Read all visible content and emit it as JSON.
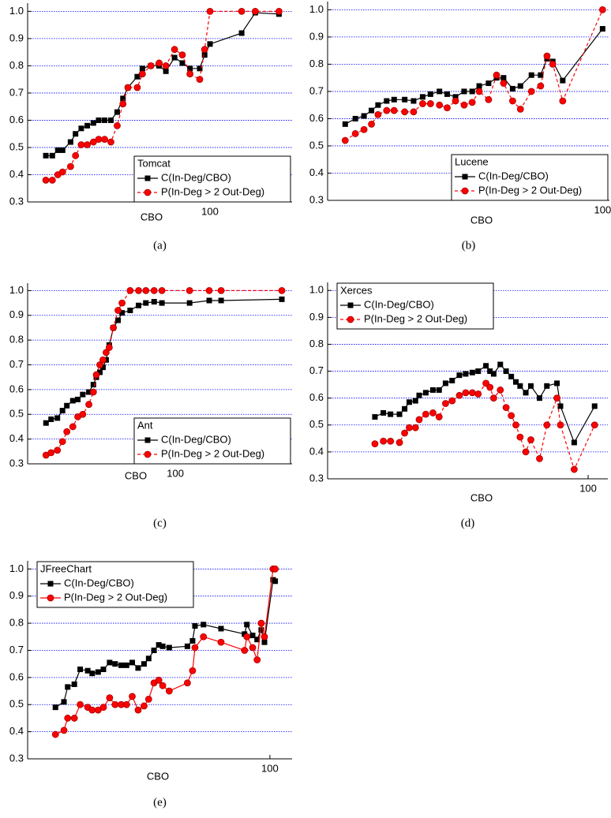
{
  "chart_data": [
    {
      "type": "line",
      "title": "Tomcat",
      "x_label": "CBO",
      "caption": "(a)",
      "x_log": true,
      "xlim": [
        0.6,
        1000
      ],
      "xticks": [
        100
      ],
      "ylim": [
        0.3,
        1.03
      ],
      "yticks": [
        0.3,
        0.4,
        0.5,
        0.6,
        0.7,
        0.8,
        0.9,
        {
          "value": 1,
          "label": "1.0"
        }
      ],
      "grid": true,
      "grid_color": "#0000ff",
      "legend_position": "lower right",
      "x": [
        1,
        1.2,
        1.4,
        1.6,
        2,
        2.3,
        2.7,
        3.2,
        3.8,
        4.4,
        5.2,
        6.2,
        7.4,
        8.7,
        10,
        13,
        15,
        19,
        24,
        29,
        37,
        46,
        57,
        75,
        86,
        100,
        243,
        356,
        693
      ],
      "series": [
        {
          "name": "C(In-Deg/CBO)",
          "color": "#000000",
          "marker": "square",
          "line_style": "solid",
          "values": [
            0.47,
            0.47,
            0.49,
            0.49,
            0.52,
            0.55,
            0.57,
            0.58,
            0.59,
            0.6,
            0.6,
            0.6,
            0.63,
            0.68,
            0.72,
            0.76,
            0.79,
            0.8,
            0.8,
            0.78,
            0.83,
            0.81,
            0.79,
            0.79,
            0.84,
            0.88,
            0.92,
            0.995,
            0.99
          ]
        },
        {
          "name": "P(In-Deg > 2 Out-Deg)",
          "color": "#ff0000",
          "marker": "circle",
          "line_style": "dashed",
          "values": [
            0.38,
            0.38,
            0.4,
            0.41,
            0.43,
            0.47,
            0.51,
            0.51,
            0.52,
            0.53,
            0.53,
            0.52,
            0.58,
            0.66,
            0.72,
            0.72,
            0.77,
            0.8,
            0.81,
            0.8,
            0.86,
            0.84,
            0.77,
            0.75,
            0.86,
            1,
            1,
            1,
            1
          ]
        }
      ]
    },
    {
      "type": "line",
      "title": "Lucene",
      "x_label": "CBO",
      "caption": "(b)",
      "x_log": true,
      "xlim": [
        0.73,
        113
      ],
      "xticks": [
        100
      ],
      "ylim": [
        0.3,
        1.03
      ],
      "yticks": [
        0.3,
        0.4,
        0.5,
        0.6,
        0.7,
        0.8,
        0.9,
        {
          "value": 1,
          "label": "1.0"
        }
      ],
      "grid": true,
      "grid_color": "#0000ff",
      "legend_position": "lower right",
      "x": [
        1,
        1.2,
        1.4,
        1.6,
        1.8,
        2.1,
        2.4,
        2.9,
        3.4,
        4,
        4.6,
        5.4,
        6.2,
        7.2,
        8.4,
        9.7,
        11,
        13,
        15,
        17,
        20,
        23,
        28,
        33,
        37,
        41,
        49,
        100
      ],
      "series": [
        {
          "name": "C(In-Deg/CBO)",
          "color": "#000000",
          "marker": "square",
          "line_style": "solid",
          "values": [
            0.58,
            0.6,
            0.61,
            0.63,
            0.65,
            0.665,
            0.67,
            0.67,
            0.665,
            0.68,
            0.69,
            0.7,
            0.69,
            0.68,
            0.7,
            0.7,
            0.72,
            0.73,
            0.75,
            0.75,
            0.71,
            0.72,
            0.76,
            0.76,
            0.82,
            0.81,
            0.74,
            0.93
          ]
        },
        {
          "name": "P(In-Deg > 2 Out-Deg)",
          "color": "#ff0000",
          "marker": "circle",
          "line_style": "dashed",
          "values": [
            0.52,
            0.545,
            0.56,
            0.58,
            0.615,
            0.63,
            0.63,
            0.625,
            0.625,
            0.655,
            0.655,
            0.65,
            0.64,
            0.665,
            0.65,
            0.66,
            0.7,
            0.67,
            0.76,
            0.73,
            0.665,
            0.635,
            0.7,
            0.72,
            0.83,
            0.8,
            0.665,
            1
          ]
        }
      ]
    },
    {
      "type": "line",
      "title": "Ant",
      "x_label": "CBO",
      "caption": "(c)",
      "x_log": true,
      "xlim": [
        0.52,
        6380
      ],
      "xticks": [
        100
      ],
      "ylim": [
        0.3,
        1.03
      ],
      "yticks": [
        0.3,
        0.4,
        0.5,
        0.6,
        0.7,
        0.8,
        0.9,
        {
          "value": 1,
          "label": "1.0"
        }
      ],
      "grid": true,
      "grid_color": "#0000ff",
      "legend_position": "lower right",
      "x": [
        1,
        1.2,
        1.5,
        1.8,
        2.1,
        2.6,
        3.1,
        3.7,
        4.6,
        5.4,
        6,
        6.8,
        7.6,
        8.5,
        9.5,
        11,
        13,
        15,
        20,
        27,
        35,
        47,
        62,
        166,
        334,
        510,
        4430
      ],
      "series": [
        {
          "name": "C(In-Deg/CBO)",
          "color": "#000000",
          "marker": "square",
          "line_style": "solid",
          "values": [
            0.465,
            0.48,
            0.485,
            0.515,
            0.535,
            0.555,
            0.56,
            0.58,
            0.59,
            0.62,
            0.65,
            0.67,
            0.69,
            0.72,
            0.78,
            0.85,
            0.88,
            0.91,
            0.92,
            0.94,
            0.95,
            0.955,
            0.95,
            0.95,
            0.96,
            0.96,
            0.965
          ]
        },
        {
          "name": "P(In-Deg > 2 Out-Deg)",
          "color": "#ff0000",
          "marker": "circle",
          "line_style": "dashed",
          "values": [
            0.335,
            0.345,
            0.355,
            0.39,
            0.43,
            0.45,
            0.49,
            0.5,
            0.54,
            0.59,
            0.66,
            0.7,
            0.72,
            0.75,
            0.77,
            0.85,
            0.92,
            0.95,
            1,
            1,
            1,
            1,
            1,
            1,
            1,
            1,
            1
          ]
        }
      ]
    },
    {
      "type": "line",
      "title": "Xerces",
      "x_label": "CBO",
      "caption": "(d)",
      "x_log": true,
      "xlim": [
        0.36,
        153
      ],
      "xticks": [
        100
      ],
      "ylim": [
        0.3,
        1.03
      ],
      "yticks": [
        0.3,
        0.4,
        0.5,
        0.6,
        0.7,
        0.8,
        0.9,
        {
          "value": 1,
          "label": "1.0"
        }
      ],
      "grid": true,
      "grid_color": "#0000ff",
      "legend_position": "upper left",
      "x": [
        1,
        1.2,
        1.4,
        1.7,
        1.9,
        2.1,
        2.4,
        2.6,
        3,
        3.5,
        4,
        4.6,
        5.3,
        6.2,
        7.1,
        8.2,
        9.3,
        11,
        12,
        13,
        15,
        17,
        19,
        21,
        23,
        26,
        29,
        35,
        41,
        51,
        55,
        74,
        115
      ],
      "series": [
        {
          "name": "C(In-Deg/CBO)",
          "color": "#000000",
          "marker": "square",
          "line_style": "solid",
          "values": [
            0.53,
            0.545,
            0.54,
            0.54,
            0.56,
            0.585,
            0.59,
            0.61,
            0.62,
            0.63,
            0.63,
            0.655,
            0.665,
            0.685,
            0.69,
            0.695,
            0.7,
            0.72,
            0.7,
            0.69,
            0.725,
            0.7,
            0.68,
            0.66,
            0.645,
            0.62,
            0.645,
            0.6,
            0.645,
            0.655,
            0.57,
            0.435,
            0.57
          ]
        },
        {
          "name": "P(In-Deg > 2 Out-Deg)",
          "color": "#ff0000",
          "marker": "circle",
          "line_style": "dashed",
          "values": [
            0.43,
            0.44,
            0.44,
            0.435,
            0.47,
            0.49,
            0.49,
            0.52,
            0.54,
            0.545,
            0.53,
            0.58,
            0.59,
            0.61,
            0.62,
            0.62,
            0.615,
            0.655,
            0.64,
            0.6,
            0.63,
            0.565,
            0.535,
            0.5,
            0.455,
            0.4,
            0.445,
            0.375,
            0.5,
            0.6,
            0.5,
            0.335,
            0.5
          ]
        }
      ]
    },
    {
      "type": "line",
      "title": "JFreeChart",
      "x_label": "CBO",
      "caption": "(e)",
      "x_log": true,
      "xlim": [
        0.55,
        161
      ],
      "xticks": [
        100
      ],
      "ylim": [
        0.3,
        1.03
      ],
      "yticks": [
        0.3,
        0.4,
        0.5,
        0.6,
        0.7,
        0.8,
        0.9,
        {
          "value": 1,
          "label": "1.0"
        }
      ],
      "grid": true,
      "grid_color": "#0000ff",
      "legend_position": "upper left",
      "x": [
        1,
        1.2,
        1.3,
        1.5,
        1.7,
        2,
        2.2,
        2.5,
        2.8,
        3.2,
        3.6,
        4.1,
        4.6,
        5.2,
        5.9,
        6.7,
        7.4,
        8.3,
        9.2,
        10,
        11.5,
        17,
        19,
        20,
        24,
        35,
        58,
        61,
        69,
        76,
        83,
        89,
        107,
        112
      ],
      "series": [
        {
          "name": "C(In-Deg/CBO)",
          "color": "#000000",
          "marker": "square",
          "line_style": "solid",
          "values": [
            0.49,
            0.51,
            0.565,
            0.575,
            0.63,
            0.625,
            0.615,
            0.62,
            0.63,
            0.655,
            0.65,
            0.645,
            0.645,
            0.655,
            0.635,
            0.65,
            0.67,
            0.7,
            0.72,
            0.715,
            0.71,
            0.715,
            0.735,
            0.79,
            0.795,
            0.78,
            0.76,
            0.795,
            0.755,
            0.74,
            0.775,
            0.73,
            0.96,
            0.955
          ]
        },
        {
          "name": "P(In-Deg > 2 Out-Deg)",
          "color": "#ff0000",
          "marker": "circle",
          "line_style": "solid",
          "values": [
            0.39,
            0.405,
            0.45,
            0.45,
            0.5,
            0.49,
            0.48,
            0.48,
            0.49,
            0.525,
            0.5,
            0.5,
            0.5,
            0.53,
            0.48,
            0.495,
            0.52,
            0.58,
            0.59,
            0.57,
            0.55,
            0.58,
            0.625,
            0.71,
            0.75,
            0.73,
            0.7,
            0.75,
            0.71,
            0.665,
            0.8,
            0.75,
            1,
            1
          ]
        }
      ]
    }
  ]
}
